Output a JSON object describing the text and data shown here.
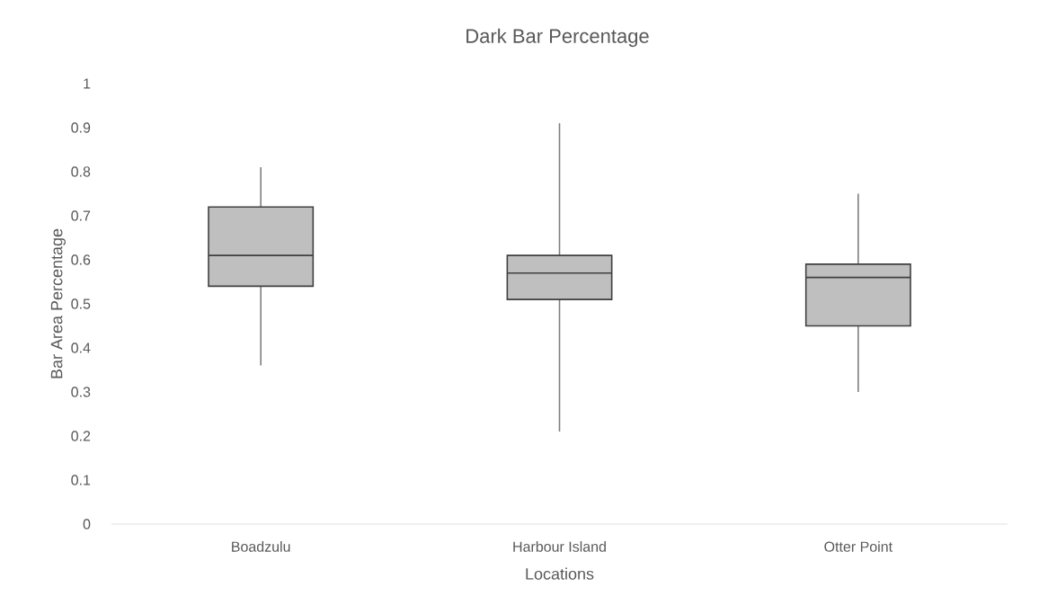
{
  "chart_data": {
    "type": "box",
    "title": "Dark Bar Percentage",
    "xlabel": "Locations",
    "ylabel": "Bar Area Percentage",
    "categories": [
      "Boadzulu",
      "Harbour Island",
      "Otter Point"
    ],
    "boxes": [
      {
        "low": 0.36,
        "q1": 0.54,
        "median": 0.61,
        "q3": 0.72,
        "high": 0.81
      },
      {
        "low": 0.21,
        "q1": 0.51,
        "median": 0.57,
        "q3": 0.61,
        "high": 0.91
      },
      {
        "low": 0.3,
        "q1": 0.45,
        "median": 0.56,
        "q3": 0.59,
        "high": 0.75
      }
    ],
    "color": "#bfbfbf",
    "ylim": [
      0,
      1
    ],
    "yticks": [
      0,
      0.1,
      0.2,
      0.3,
      0.4,
      0.5,
      0.6,
      0.7,
      0.8,
      0.9,
      1
    ]
  }
}
